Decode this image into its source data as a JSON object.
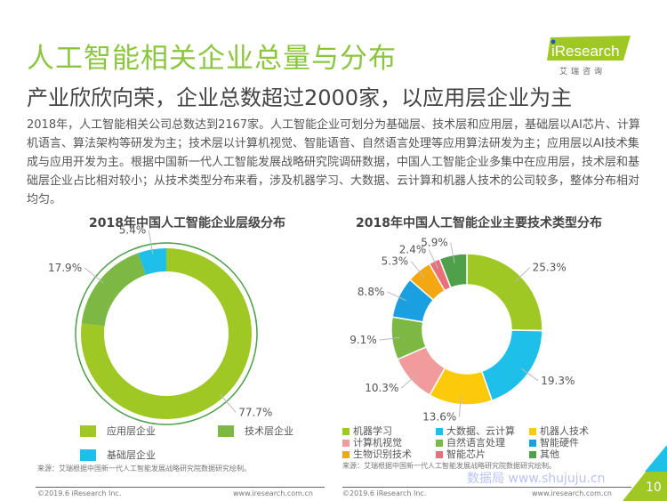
{
  "header": {
    "title": "人工智能相关企业总量与分布",
    "subtitle": "产业欣欣向荣，企业总数超过2000家，以应用层企业为主",
    "logo_text": "iResearch",
    "logo_cn": "艾 瑞 咨 询"
  },
  "body_text": "2018年，人工智能相关公司总数达到2167家。人工智能企业可划分为基础层、技术层和应用层，基础层以AI芯片、计算机语言、算法架构等研发为主；技术层以计算机视觉、智能语音、自然语言处理等应用算法研发为主；应用层以AI技术集成与应用开发为主。根据中国新一代人工智能发展战略研究院调研数据，中国人工智能企业多集中在应用层，技术层和基础层企业占比相对较小；从技术类型分布来看，涉及机器学习、大数据、云计算和机器人技术的公司较多，整体分布相对均匀。",
  "chart_data": [
    {
      "type": "pie",
      "donut": true,
      "title": "2018年中国人工智能企业层级分布",
      "categories": [
        "应用层企业",
        "技术层企业",
        "基础层企业"
      ],
      "values": [
        77.7,
        17.9,
        5.4
      ],
      "labels": [
        "77.7%",
        "17.9%",
        "5.4%"
      ],
      "colors": [
        "#a0c825",
        "#7cb843",
        "#1ec0ea"
      ],
      "legend": "bottom"
    },
    {
      "type": "pie",
      "donut": true,
      "title": "2018年中国人工智能企业主要技术类型分布",
      "categories": [
        "机器学习",
        "大数据、云计算",
        "机器人技术",
        "计算机视觉",
        "自然语言处理",
        "智能硬件",
        "生物识别技术",
        "智能芯片",
        "其他"
      ],
      "values": [
        25.3,
        19.3,
        13.6,
        10.3,
        9.1,
        8.8,
        5.3,
        2.4,
        5.9
      ],
      "labels": [
        "25.3%",
        "19.3%",
        "13.6%",
        "10.3%",
        "9.1%",
        "8.8%",
        "5.3%",
        "2.4%",
        "5.9%"
      ],
      "colors": [
        "#a0c825",
        "#1ec0ea",
        "#fcc90b",
        "#f29b9c",
        "#7cb843",
        "#1a9fe0",
        "#f3a712",
        "#e8707a",
        "#4f9f4b"
      ],
      "legend": "bottom"
    }
  ],
  "footer": {
    "source": "来源：艾瑞根据中国新一代人工智能发展战略研究院数据研究绘制。",
    "copyright": "©2019.6 iResearch Inc.",
    "url": "www.iresearch.com.cn",
    "page": "10",
    "watermark": "数据局 www.shujuju.cn"
  }
}
